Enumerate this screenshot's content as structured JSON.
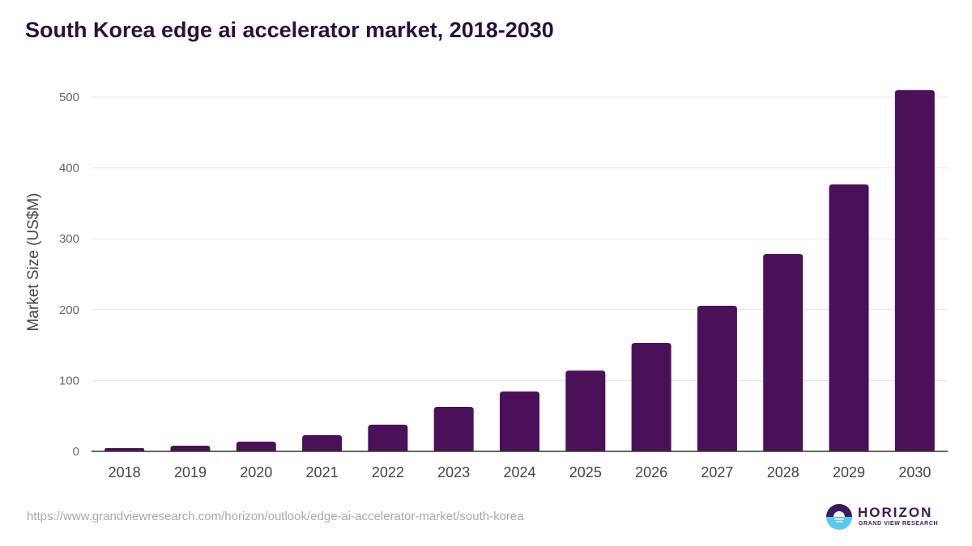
{
  "chart_data": {
    "type": "bar",
    "title": "South Korea edge ai accelerator market, 2018-2030",
    "xlabel": "",
    "ylabel": "Market Size (US$M)",
    "categories": [
      "2018",
      "2019",
      "2020",
      "2021",
      "2022",
      "2023",
      "2024",
      "2025",
      "2026",
      "2027",
      "2028",
      "2029",
      "2030"
    ],
    "values": [
      4.6,
      8,
      13.7,
      23,
      37.7,
      62.8,
      84.5,
      114,
      153,
      205.5,
      278.5,
      376.7,
      510
    ],
    "ylim": [
      0,
      520
    ],
    "yticks": [
      0,
      100,
      200,
      300,
      400,
      500
    ],
    "grid": true,
    "bar_color": "#4b1158"
  },
  "footer": {
    "source_url": "https://www.grandviewresearch.com/horizon/outlook/edge-ai-accelerator-market/south-korea"
  },
  "logo": {
    "name": "HORIZON",
    "subtitle": "GRAND VIEW RESEARCH"
  }
}
